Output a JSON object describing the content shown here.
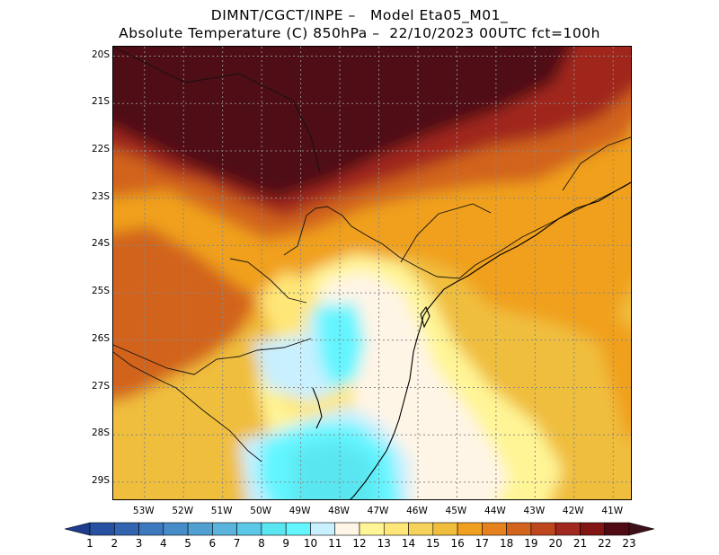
{
  "title": {
    "line1": "DIMNT/CGCT/INPE –   Model Eta05_M01_",
    "line2": "Absolute Temperature (C) 850hPa –  22/10/2023 00UTC fct=100h"
  },
  "map": {
    "lat_labels": [
      "20S",
      "21S",
      "22S",
      "23S",
      "24S",
      "25S",
      "26S",
      "27S",
      "28S",
      "29S"
    ],
    "lon_labels": [
      "53W",
      "52W",
      "51W",
      "50W",
      "49W",
      "48W",
      "47W",
      "46W",
      "45W",
      "44W",
      "43W",
      "42W",
      "41W"
    ],
    "lat_range": [
      -29.4,
      -19.8
    ],
    "lon_range": [
      -53.8,
      -40.5
    ],
    "grid": true
  },
  "colorbar": {
    "labels": [
      "1",
      "2",
      "3",
      "4",
      "5",
      "6",
      "7",
      "8",
      "9",
      "10",
      "11",
      "12",
      "13",
      "14",
      "15",
      "16",
      "17",
      "18",
      "19",
      "20",
      "21",
      "22",
      "23"
    ],
    "colors": [
      "#1e3c8c",
      "#2850a0",
      "#3264af",
      "#3c78be",
      "#468cc8",
      "#50a0d2",
      "#5ab4dc",
      "#5ac8e6",
      "#5ae6f0",
      "#64f5ff",
      "#c8f0ff",
      "#fff5e6",
      "#fff596",
      "#ffe678",
      "#f5d25a",
      "#f0be3c",
      "#f0a01e",
      "#e6821e",
      "#d2641e",
      "#be461e",
      "#a0281e",
      "#821414",
      "#500a14",
      "#40101a"
    ]
  }
}
